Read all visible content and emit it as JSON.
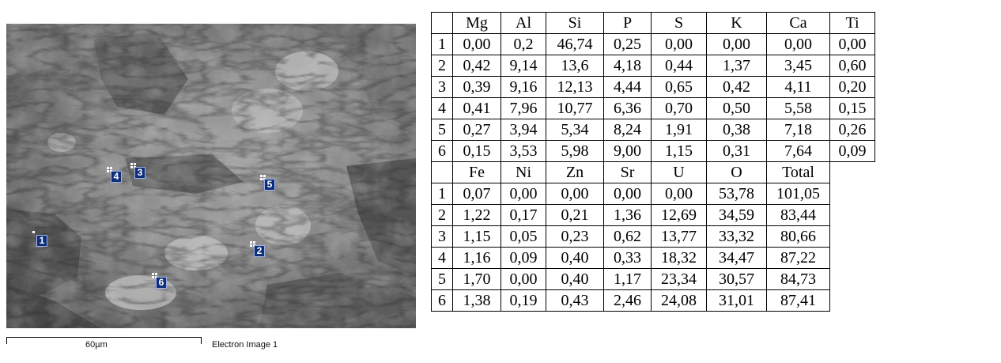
{
  "image_panel": {
    "scale_label": "60µm",
    "caption": "Electron Image 1",
    "markers": [
      "1",
      "2",
      "3",
      "4",
      "5",
      "6"
    ]
  },
  "table": {
    "part1": {
      "headers": [
        "Mg",
        "Al",
        "Si",
        "P",
        "S",
        "K",
        "Ca",
        "Ti"
      ],
      "rows": [
        {
          "id": "1",
          "values": [
            "0,00",
            "0,2",
            "46,74",
            "0,25",
            "0,00",
            "0,00",
            "0,00",
            "0,00"
          ]
        },
        {
          "id": "2",
          "values": [
            "0,42",
            "9,14",
            "13,6",
            "4,18",
            "0,44",
            "1,37",
            "3,45",
            "0,60"
          ]
        },
        {
          "id": "3",
          "values": [
            "0,39",
            "9,16",
            "12,13",
            "4,44",
            "0,65",
            "0,42",
            "4,11",
            "0,20"
          ]
        },
        {
          "id": "4",
          "values": [
            "0,41",
            "7,96",
            "10,77",
            "6,36",
            "0,70",
            "0,50",
            "5,58",
            "0,15"
          ]
        },
        {
          "id": "5",
          "values": [
            "0,27",
            "3,94",
            "5,34",
            "8,24",
            "1,91",
            "0,38",
            "7,18",
            "0,26"
          ]
        },
        {
          "id": "6",
          "values": [
            "0,15",
            "3,53",
            "5,98",
            "9,00",
            "1,15",
            "0,31",
            "7,64",
            "0,09"
          ]
        }
      ]
    },
    "part2": {
      "headers": [
        "Fe",
        "Ni",
        "Zn",
        "Sr",
        "U",
        "O",
        "Total"
      ],
      "rows": [
        {
          "id": "1",
          "values": [
            "0,07",
            "0,00",
            "0,00",
            "0,00",
            "0,00",
            "53,78",
            "101,05"
          ]
        },
        {
          "id": "2",
          "values": [
            "1,22",
            "0,17",
            "0,21",
            "1,36",
            "12,69",
            "34,59",
            "83,44"
          ]
        },
        {
          "id": "3",
          "values": [
            "1,15",
            "0,05",
            "0,23",
            "0,62",
            "13,77",
            "33,32",
            "80,66"
          ]
        },
        {
          "id": "4",
          "values": [
            "1,16",
            "0,09",
            "0,40",
            "0,33",
            "18,32",
            "34,47",
            "87,22"
          ]
        },
        {
          "id": "5",
          "values": [
            "1,70",
            "0,00",
            "0,40",
            "1,17",
            "23,34",
            "30,57",
            "84,73"
          ]
        },
        {
          "id": "6",
          "values": [
            "1,38",
            "0,19",
            "0,43",
            "2,46",
            "24,08",
            "31,01",
            "87,41"
          ]
        }
      ]
    }
  }
}
